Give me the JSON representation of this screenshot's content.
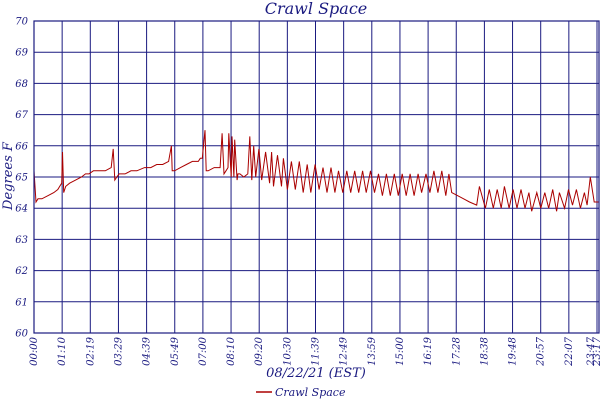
{
  "chart_data": {
    "type": "line",
    "title": "Crawl Space",
    "xlabel": "08/22/21 (EST)",
    "ylabel": "Degrees F",
    "ylim": [
      60,
      70
    ],
    "yticks": [
      60,
      61,
      62,
      63,
      64,
      65,
      66,
      67,
      68,
      69,
      70
    ],
    "xticks": [
      "00:00",
      "01:10",
      "02:19",
      "03:29",
      "04:39",
      "05:49",
      "07:00",
      "08:10",
      "09:20",
      "10:30",
      "11:39",
      "12:49",
      "13:59",
      "15:00",
      "16:19",
      "17:28",
      "18:38",
      "19:48",
      "20:57",
      "22:07",
      "23:17"
    ],
    "xticks_end_extra": "23:47",
    "grid": true,
    "legend_position": "bottom-center",
    "colors": {
      "series": "#aa0000",
      "grid": "#1a1a80",
      "text": "#1a1a80"
    },
    "series": [
      {
        "name": "Crawl Space",
        "x": [
          "00:00",
          "00:05",
          "00:10",
          "00:20",
          "00:35",
          "00:50",
          "01:00",
          "01:05",
          "01:10",
          "01:12",
          "01:15",
          "01:20",
          "01:30",
          "01:45",
          "02:00",
          "02:10",
          "02:19",
          "02:30",
          "02:45",
          "03:00",
          "03:15",
          "03:20",
          "03:24",
          "03:29",
          "03:35",
          "03:50",
          "04:05",
          "04:20",
          "04:39",
          "04:55",
          "05:10",
          "05:25",
          "05:40",
          "05:47",
          "05:49",
          "05:55",
          "06:10",
          "06:25",
          "06:40",
          "06:55",
          "07:00",
          "07:05",
          "07:12",
          "07:15",
          "07:20",
          "07:35",
          "07:50",
          "07:55",
          "08:00",
          "08:05",
          "08:10",
          "08:12",
          "08:18",
          "08:20",
          "08:25",
          "08:27",
          "08:33",
          "08:35",
          "08:40",
          "08:50",
          "09:00",
          "09:05",
          "09:10",
          "09:15",
          "09:20",
          "09:28",
          "09:35",
          "09:45",
          "09:55",
          "10:00",
          "10:05",
          "10:15",
          "10:25",
          "10:30",
          "10:40",
          "10:50",
          "11:00",
          "11:10",
          "11:20",
          "11:30",
          "11:39",
          "11:50",
          "12:00",
          "12:10",
          "12:20",
          "12:30",
          "12:40",
          "12:49",
          "13:00",
          "13:10",
          "13:20",
          "13:30",
          "13:40",
          "13:50",
          "13:59",
          "14:10",
          "14:20",
          "14:30",
          "14:40",
          "14:50",
          "15:00",
          "15:10",
          "15:20",
          "15:30",
          "15:40",
          "15:50",
          "16:00",
          "16:10",
          "16:19",
          "16:30",
          "16:40",
          "16:50",
          "17:00",
          "17:10",
          "17:20",
          "17:28",
          "17:35",
          "17:50",
          "18:05",
          "18:20",
          "18:38",
          "18:45",
          "19:00",
          "19:10",
          "19:20",
          "19:30",
          "19:40",
          "19:48",
          "20:00",
          "20:10",
          "20:20",
          "20:30",
          "20:40",
          "20:50",
          "20:57",
          "21:10",
          "21:20",
          "21:30",
          "21:40",
          "21:50",
          "22:00",
          "22:07",
          "22:20",
          "22:30",
          "22:40",
          "22:50",
          "23:00",
          "23:10",
          "23:17",
          "23:25",
          "23:35",
          "23:40",
          "23:47"
        ],
        "values": [
          65.2,
          64.2,
          64.3,
          64.3,
          64.4,
          64.5,
          64.6,
          64.7,
          64.8,
          65.8,
          64.5,
          64.7,
          64.8,
          64.9,
          65.0,
          65.1,
          65.1,
          65.2,
          65.2,
          65.2,
          65.3,
          65.9,
          64.9,
          65.0,
          65.1,
          65.1,
          65.2,
          65.2,
          65.3,
          65.3,
          65.4,
          65.4,
          65.5,
          66.0,
          65.2,
          65.2,
          65.3,
          65.4,
          65.5,
          65.5,
          65.6,
          65.6,
          66.5,
          65.2,
          65.2,
          65.3,
          65.3,
          66.4,
          65.1,
          65.2,
          65.3,
          66.4,
          65.0,
          66.3,
          65.0,
          66.2,
          64.9,
          65.1,
          65.1,
          65.0,
          65.1,
          66.3,
          64.9,
          66.0,
          65.0,
          65.9,
          64.9,
          65.8,
          64.8,
          65.8,
          64.7,
          65.7,
          64.7,
          65.6,
          64.6,
          65.5,
          64.6,
          65.5,
          64.5,
          65.4,
          64.5,
          65.4,
          64.6,
          65.3,
          64.5,
          65.3,
          64.5,
          65.2,
          64.5,
          65.2,
          64.5,
          65.2,
          64.5,
          65.2,
          64.5,
          65.2,
          64.5,
          65.1,
          64.4,
          65.1,
          64.4,
          65.1,
          64.4,
          65.1,
          64.4,
          65.1,
          64.4,
          65.1,
          64.5,
          65.1,
          64.5,
          65.2,
          64.5,
          65.2,
          64.4,
          65.1,
          64.5,
          64.4,
          64.3,
          64.2,
          64.1,
          64.7,
          64.0,
          64.6,
          64.0,
          64.6,
          64.0,
          64.7,
          64.0,
          64.6,
          64.0,
          64.6,
          64.0,
          64.5,
          63.9,
          64.5,
          64.0,
          64.5,
          64.0,
          64.6,
          63.9,
          64.5,
          64.0,
          64.6,
          64.1,
          64.6,
          64.0,
          64.5,
          64.1,
          65.0,
          64.2,
          64.2,
          64.2
        ]
      }
    ]
  }
}
